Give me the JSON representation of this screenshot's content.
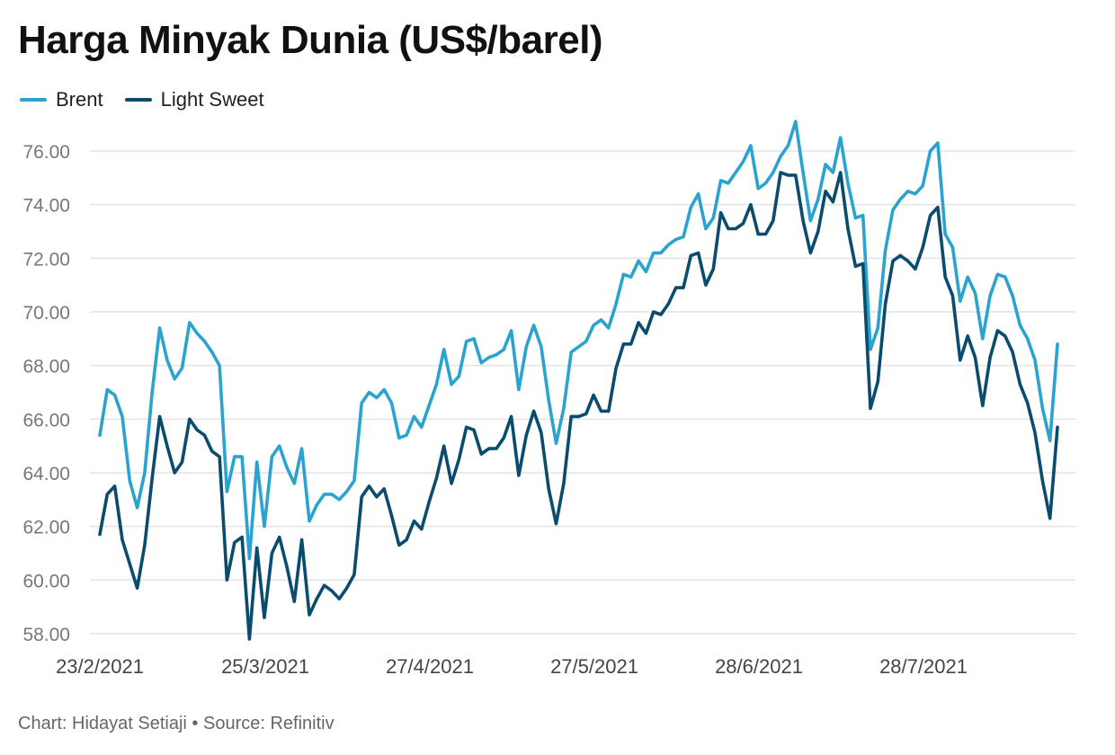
{
  "chart_data": {
    "type": "line",
    "title": "Harga Minyak Dunia (US$/barel)",
    "credit": "Chart: Hidayat Setiaji • Source: Refinitiv",
    "x_tick_labels": [
      "23/2/2021",
      "25/3/2021",
      "27/4/2021",
      "27/5/2021",
      "28/6/2021",
      "28/7/2021"
    ],
    "y_tick_labels": [
      "58.00",
      "60.00",
      "62.00",
      "64.00",
      "66.00",
      "68.00",
      "70.00",
      "72.00",
      "74.00",
      "76.00"
    ],
    "ylim": [
      57.6,
      77.5
    ],
    "grid": true,
    "legend_position": "top-left",
    "series": [
      {
        "name": "Brent",
        "color": "#2ba3cf",
        "values": [
          65.4,
          67.1,
          66.9,
          66.1,
          63.7,
          62.7,
          64.0,
          67.0,
          69.4,
          68.2,
          67.5,
          67.9,
          69.6,
          69.2,
          68.9,
          68.5,
          68.0,
          63.3,
          64.6,
          64.6,
          60.8,
          64.4,
          62.0,
          64.6,
          65.0,
          64.2,
          63.6,
          64.9,
          62.2,
          62.8,
          63.2,
          63.2,
          63.0,
          63.3,
          63.7,
          66.6,
          67.0,
          66.8,
          67.1,
          66.6,
          65.3,
          65.4,
          66.1,
          65.7,
          66.5,
          67.3,
          68.6,
          67.3,
          67.6,
          68.9,
          69.0,
          68.1,
          68.3,
          68.4,
          68.6,
          69.3,
          67.1,
          68.7,
          69.5,
          68.7,
          66.7,
          65.1,
          66.4,
          68.5,
          68.7,
          68.9,
          69.5,
          69.7,
          69.4,
          70.3,
          71.4,
          71.3,
          71.9,
          71.5,
          72.2,
          72.2,
          72.5,
          72.7,
          72.8,
          73.9,
          74.4,
          73.1,
          73.5,
          74.9,
          74.8,
          75.2,
          75.6,
          76.2,
          74.6,
          74.8,
          75.2,
          75.8,
          76.2,
          77.1,
          75.2,
          73.4,
          74.2,
          75.5,
          75.2,
          76.5,
          74.8,
          73.5,
          73.6,
          68.6,
          69.4,
          72.3,
          73.8,
          74.2,
          74.5,
          74.4,
          74.7,
          76.0,
          76.3,
          72.9,
          72.4,
          70.4,
          71.3,
          70.7,
          69.0,
          70.6,
          71.4,
          71.3,
          70.6,
          69.5,
          69.0,
          68.2,
          66.4,
          65.2,
          68.8
        ]
      },
      {
        "name": "Light Sweet",
        "color": "#0a4c6e",
        "values": [
          61.7,
          63.2,
          63.5,
          61.5,
          60.6,
          59.7,
          61.3,
          63.8,
          66.1,
          65.0,
          64.0,
          64.4,
          66.0,
          65.6,
          65.4,
          64.8,
          64.6,
          60.0,
          61.4,
          61.6,
          57.8,
          61.2,
          58.6,
          61.0,
          61.6,
          60.5,
          59.2,
          61.5,
          58.7,
          59.3,
          59.8,
          59.6,
          59.3,
          59.7,
          60.2,
          63.1,
          63.5,
          63.1,
          63.4,
          62.4,
          61.3,
          61.5,
          62.2,
          61.9,
          62.9,
          63.8,
          65.0,
          63.6,
          64.5,
          65.7,
          65.6,
          64.7,
          64.9,
          64.9,
          65.3,
          66.1,
          63.9,
          65.4,
          66.3,
          65.5,
          63.4,
          62.1,
          63.6,
          66.1,
          66.1,
          66.2,
          66.9,
          66.3,
          66.3,
          67.9,
          68.8,
          68.8,
          69.6,
          69.2,
          70.0,
          69.9,
          70.3,
          70.9,
          70.9,
          72.1,
          72.2,
          71.0,
          71.6,
          73.7,
          73.1,
          73.1,
          73.3,
          74.0,
          72.9,
          72.9,
          73.4,
          75.2,
          75.1,
          75.1,
          73.4,
          72.2,
          73.0,
          74.5,
          74.1,
          75.2,
          73.1,
          71.7,
          71.8,
          66.4,
          67.4,
          70.3,
          71.9,
          72.1,
          71.9,
          71.6,
          72.4,
          73.6,
          73.9,
          71.3,
          70.6,
          68.2,
          69.1,
          68.3,
          66.5,
          68.3,
          69.3,
          69.1,
          68.5,
          67.3,
          66.6,
          65.5,
          63.7,
          62.3,
          65.7
        ]
      }
    ]
  }
}
